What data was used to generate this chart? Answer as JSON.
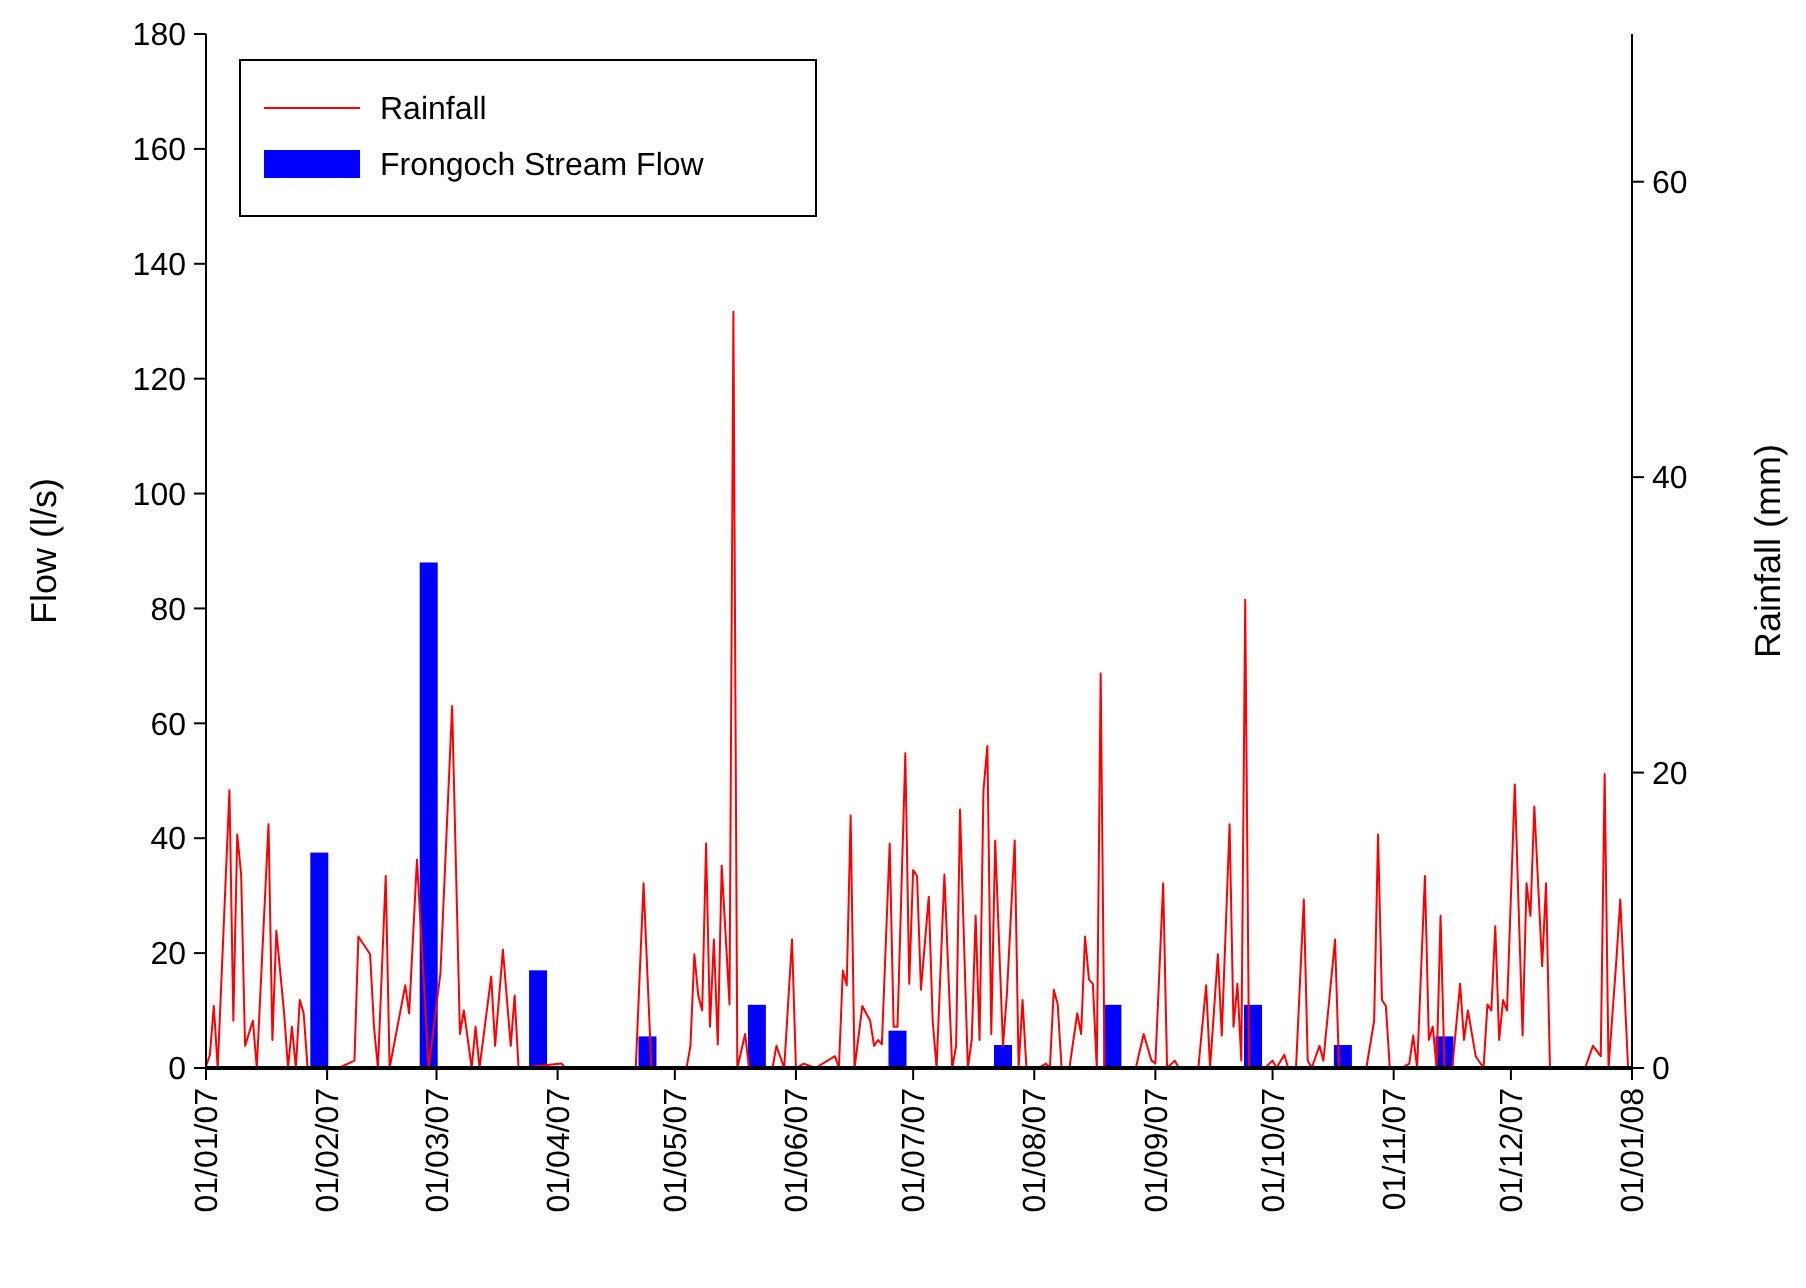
{
  "chart_data": {
    "type": "bar",
    "ylabel": "Flow (l/s)",
    "y2label": "Rainfall (mm)",
    "xlim": [
      "2007-01-01",
      "2008-01-01"
    ],
    "xticks": [
      {
        "value": "2007-01-01",
        "label": "01/01/07"
      },
      {
        "value": "2007-02-01",
        "label": "01/02/07"
      },
      {
        "value": "2007-03-01",
        "label": "01/03/07"
      },
      {
        "value": "2007-04-01",
        "label": "01/04/07"
      },
      {
        "value": "2007-05-01",
        "label": "01/05/07"
      },
      {
        "value": "2007-06-01",
        "label": "01/06/07"
      },
      {
        "value": "2007-07-01",
        "label": "01/07/07"
      },
      {
        "value": "2007-08-01",
        "label": "01/08/07"
      },
      {
        "value": "2007-09-01",
        "label": "01/09/07"
      },
      {
        "value": "2007-10-01",
        "label": "01/10/07"
      },
      {
        "value": "2007-11-01",
        "label": "01/11/07"
      },
      {
        "value": "2007-12-01",
        "label": "01/12/07"
      },
      {
        "value": "2008-01-01",
        "label": "01/01/08"
      }
    ],
    "ylim": [
      0,
      180
    ],
    "yticks": [
      0,
      20,
      40,
      60,
      80,
      100,
      120,
      140,
      160,
      180
    ],
    "y2lim": [
      0,
      70
    ],
    "y2ticks": [
      0,
      20,
      40,
      60
    ],
    "legend": "top left",
    "grid": false,
    "series": [
      {
        "name": "Rainfall",
        "type": "line",
        "axis": "y2",
        "color": "#ff0000",
        "x": [
          "2007-01-01",
          "2007-01-02",
          "2007-01-03",
          "2007-01-04",
          "2007-01-07",
          "2007-01-08",
          "2007-01-09",
          "2007-01-10",
          "2007-01-11",
          "2007-01-13",
          "2007-01-14",
          "2007-01-17",
          "2007-01-18",
          "2007-01-19",
          "2007-01-21",
          "2007-01-22",
          "2007-01-23",
          "2007-01-24",
          "2007-01-25",
          "2007-01-26",
          "2007-01-27",
          "2007-02-04",
          "2007-02-08",
          "2007-02-09",
          "2007-02-12",
          "2007-02-13",
          "2007-02-14",
          "2007-02-16",
          "2007-02-17",
          "2007-02-21",
          "2007-02-22",
          "2007-02-24",
          "2007-02-27",
          "2007-03-02",
          "2007-03-05",
          "2007-03-07",
          "2007-03-08",
          "2007-03-10",
          "2007-03-11",
          "2007-03-12",
          "2007-03-15",
          "2007-03-16",
          "2007-03-18",
          "2007-03-20",
          "2007-03-21",
          "2007-03-22",
          "2007-04-02",
          "2007-04-03",
          "2007-04-21",
          "2007-04-23",
          "2007-04-25",
          "2007-05-04",
          "2007-05-05",
          "2007-05-06",
          "2007-05-07",
          "2007-05-08",
          "2007-05-09",
          "2007-05-10",
          "2007-05-11",
          "2007-05-12",
          "2007-05-13",
          "2007-05-15",
          "2007-05-16",
          "2007-05-17",
          "2007-05-19",
          "2007-05-20",
          "2007-05-26",
          "2007-05-27",
          "2007-05-29",
          "2007-05-31",
          "2007-06-01",
          "2007-06-03",
          "2007-06-06",
          "2007-06-11",
          "2007-06-12",
          "2007-06-13",
          "2007-06-14",
          "2007-06-15",
          "2007-06-16",
          "2007-06-18",
          "2007-06-20",
          "2007-06-21",
          "2007-06-22",
          "2007-06-23",
          "2007-06-25",
          "2007-06-26",
          "2007-06-27",
          "2007-06-29",
          "2007-06-30",
          "2007-07-01",
          "2007-07-02",
          "2007-07-03",
          "2007-07-05",
          "2007-07-06",
          "2007-07-07",
          "2007-07-09",
          "2007-07-11",
          "2007-07-12",
          "2007-07-13",
          "2007-07-15",
          "2007-07-16",
          "2007-07-17",
          "2007-07-18",
          "2007-07-19",
          "2007-07-20",
          "2007-07-21",
          "2007-07-22",
          "2007-07-24",
          "2007-07-25",
          "2007-07-27",
          "2007-07-28",
          "2007-07-29",
          "2007-07-30",
          "2007-08-02",
          "2007-08-04",
          "2007-08-05",
          "2007-08-06",
          "2007-08-07",
          "2007-08-08",
          "2007-08-10",
          "2007-08-12",
          "2007-08-13",
          "2007-08-14",
          "2007-08-15",
          "2007-08-16",
          "2007-08-17",
          "2007-08-18",
          "2007-08-19",
          "2007-08-27",
          "2007-08-29",
          "2007-08-31",
          "2007-09-01",
          "2007-09-03",
          "2007-09-04",
          "2007-09-06",
          "2007-09-07",
          "2007-09-12",
          "2007-09-14",
          "2007-09-15",
          "2007-09-17",
          "2007-09-18",
          "2007-09-20",
          "2007-09-21",
          "2007-09-22",
          "2007-09-23",
          "2007-09-24",
          "2007-09-25",
          "2007-09-29",
          "2007-10-01",
          "2007-10-02",
          "2007-10-04",
          "2007-10-05",
          "2007-10-07",
          "2007-10-09",
          "2007-10-10",
          "2007-10-11",
          "2007-10-13",
          "2007-10-14",
          "2007-10-17",
          "2007-10-18",
          "2007-10-25",
          "2007-10-27",
          "2007-10-28",
          "2007-10-29",
          "2007-10-30",
          "2007-10-31",
          "2007-11-03",
          "2007-11-05",
          "2007-11-06",
          "2007-11-07",
          "2007-11-09",
          "2007-11-10",
          "2007-11-11",
          "2007-11-12",
          "2007-11-13",
          "2007-11-14",
          "2007-11-16",
          "2007-11-18",
          "2007-11-19",
          "2007-11-20",
          "2007-11-22",
          "2007-11-24",
          "2007-11-25",
          "2007-11-26",
          "2007-11-27",
          "2007-11-28",
          "2007-11-29",
          "2007-11-30",
          "2007-12-02",
          "2007-12-04",
          "2007-12-05",
          "2007-12-06",
          "2007-12-07",
          "2007-12-09",
          "2007-12-10",
          "2007-12-11",
          "2007-12-20",
          "2007-12-22",
          "2007-12-24",
          "2007-12-25",
          "2007-12-26",
          "2007-12-28",
          "2007-12-29",
          "2007-12-31"
        ],
        "values": [
          0.1,
          0.9,
          4.2,
          0,
          18.8,
          3.2,
          15.8,
          13.1,
          1.5,
          3.2,
          0,
          16.5,
          1.9,
          9.3,
          3.7,
          0,
          2.8,
          0,
          4.6,
          3.7,
          0,
          0,
          0.5,
          8.9,
          7.7,
          2.8,
          0,
          13,
          0,
          5.6,
          3.7,
          14.1,
          0,
          6.4,
          24.5,
          2.3,
          3.9,
          0,
          2.8,
          0,
          6.2,
          1.5,
          8,
          1.5,
          4.9,
          0,
          0.3,
          0,
          0,
          12.5,
          0,
          0,
          1.5,
          7.7,
          4.9,
          3.9,
          15.2,
          2.8,
          8.7,
          1.6,
          13.7,
          4.3,
          51.2,
          0,
          2.3,
          0,
          0,
          1.5,
          0,
          8.7,
          0,
          0.3,
          0,
          0.8,
          0,
          6.6,
          5.6,
          17.1,
          0,
          4.2,
          3.2,
          1.5,
          1.9,
          1.6,
          15.2,
          2.8,
          2.8,
          21.3,
          5.7,
          13.4,
          13,
          5.3,
          11.6,
          3.2,
          0,
          13.1,
          0,
          1.5,
          17.5,
          0,
          1.9,
          10.3,
          1.9,
          18.8,
          21.8,
          2.3,
          15.4,
          1.5,
          5,
          15.4,
          0,
          4.6,
          0,
          0,
          0.3,
          0,
          5.3,
          4.3,
          0,
          0,
          3.7,
          2.3,
          8.9,
          6,
          5.7,
          0,
          26.7,
          0,
          0,
          2.3,
          0.5,
          0.3,
          12.5,
          0,
          0.5,
          0,
          0,
          5.6,
          0,
          7.7,
          2.2,
          16.5,
          2.8,
          5.7,
          0.5,
          31.7,
          0,
          0,
          0.5,
          0,
          0.9,
          0,
          0,
          11.4,
          0.5,
          0,
          1.5,
          0.5,
          8.7,
          0,
          0,
          3.2,
          15.8,
          4.6,
          4.2,
          0,
          0,
          0.3,
          2.2,
          0,
          13,
          1.9,
          2.8,
          0,
          10.3,
          0,
          0,
          5.7,
          1.9,
          3.9,
          0.8,
          0,
          4.3,
          3.9,
          9.6,
          1.9,
          4.6,
          3.9,
          19.2,
          2.2,
          12.5,
          10.3,
          17.7,
          6.9,
          12.5,
          0,
          0,
          1.5,
          0.8,
          19.9,
          0,
          7.3,
          11.4,
          0
        ]
      },
      {
        "name": "Frongoch Stream Flow",
        "color": "#0000ff",
        "x": [
          "2007-01-30",
          "2007-02-27",
          "2007-03-27",
          "2007-04-24",
          "2007-05-22",
          "2007-06-27",
          "2007-07-24",
          "2007-08-21",
          "2007-09-26",
          "2007-10-19",
          "2007-11-14"
        ],
        "values": [
          37.5,
          88,
          17,
          5.5,
          11,
          6.5,
          4,
          11,
          11,
          4,
          5.5
        ]
      }
    ]
  }
}
